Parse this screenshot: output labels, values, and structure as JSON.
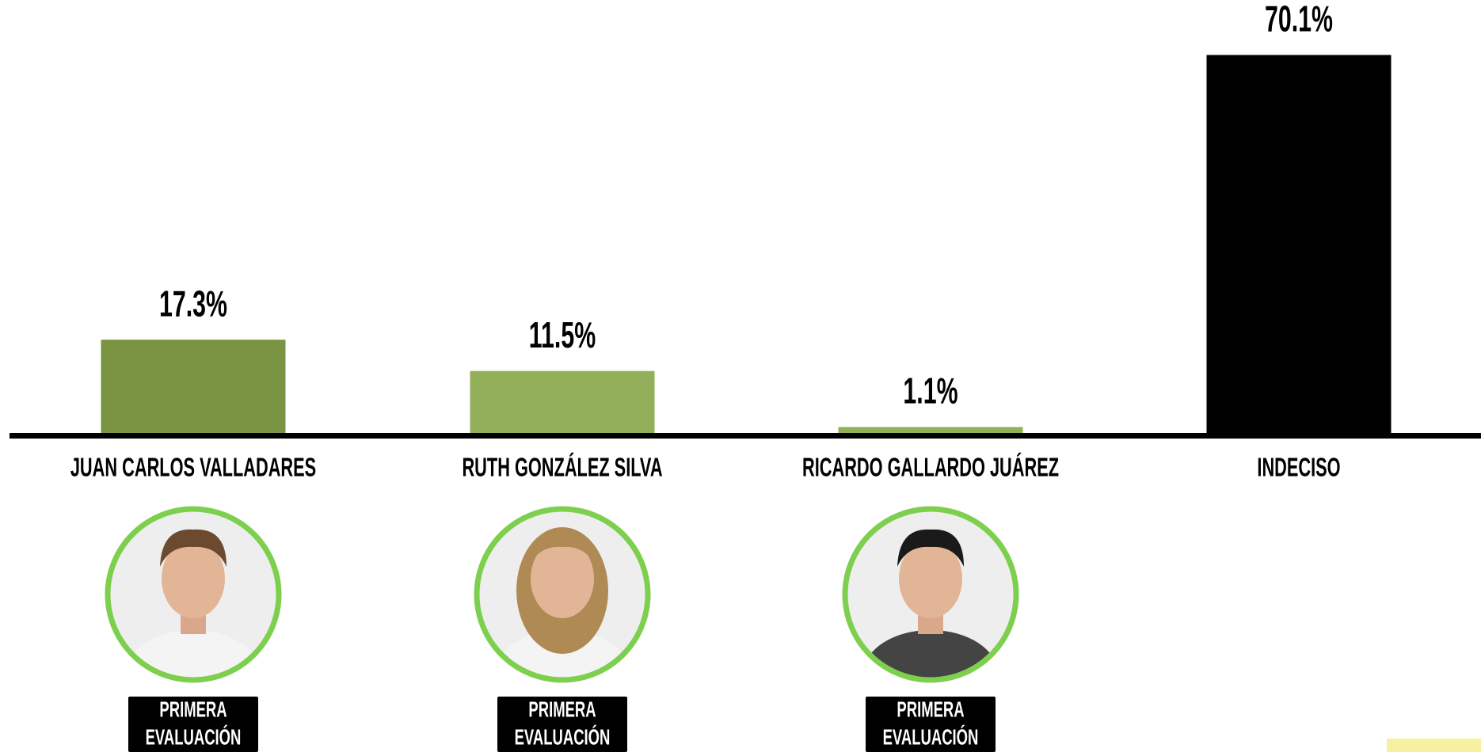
{
  "chart_data": {
    "type": "bar",
    "categories": [
      "JUAN CARLOS VALLADARES",
      "RUTH GONZÁLEZ SILVA",
      "RICARDO GALLARDO JUÁREZ",
      "INDECISO"
    ],
    "values": [
      17.3,
      11.5,
      1.1,
      70.1
    ],
    "value_labels": [
      "17.3%",
      "11.5%",
      "1.1%",
      "70.1%"
    ],
    "colors": [
      "#7a9444",
      "#92b05a",
      "#92b05a",
      "#000000"
    ],
    "ylim": [
      0,
      80
    ],
    "badges": [
      [
        "PRIMERA",
        "EVALUACIÓN"
      ],
      [
        "PRIMERA",
        "EVALUACIÓN"
      ],
      [
        "PRIMERA",
        "EVALUACIÓN"
      ]
    ]
  }
}
